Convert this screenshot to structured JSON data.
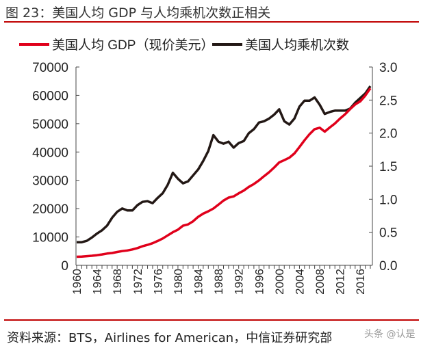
{
  "title": "图 23：美国人均 GDP 与人均乘机次数正相关",
  "source": "资料来源：BTS，Airlines for American，中信证券研究部",
  "watermark": "头条 @认是",
  "colors": {
    "gdp": "#e0001b",
    "trips": "#231815",
    "rule": "#c00000"
  },
  "chart_data": {
    "type": "line",
    "title": "",
    "x": [
      1960,
      1961,
      1962,
      1963,
      1964,
      1965,
      1966,
      1967,
      1968,
      1969,
      1970,
      1971,
      1972,
      1973,
      1974,
      1975,
      1976,
      1977,
      1978,
      1979,
      1980,
      1981,
      1982,
      1983,
      1984,
      1985,
      1986,
      1987,
      1988,
      1989,
      1990,
      1991,
      1992,
      1993,
      1994,
      1995,
      1996,
      1997,
      1998,
      1999,
      2000,
      2001,
      2002,
      2003,
      2004,
      2005,
      2006,
      2007,
      2008,
      2009,
      2010,
      2011,
      2012,
      2013,
      2014,
      2015,
      2016,
      2017,
      2018
    ],
    "xticks": [
      "1960",
      "1964",
      "1968",
      "1972",
      "1976",
      "1980",
      "1984",
      "1988",
      "1992",
      "1996",
      "2000",
      "2004",
      "2008",
      "2012",
      "2016"
    ],
    "y_left": {
      "lim": [
        0,
        70000
      ],
      "ticks": [
        "0",
        "10000",
        "20000",
        "30000",
        "40000",
        "50000",
        "60000",
        "70000"
      ]
    },
    "y_right": {
      "lim": [
        0,
        3.0
      ],
      "ticks": [
        "0.0",
        "0.5",
        "1.0",
        "1.5",
        "2.0",
        "2.5",
        "3.0"
      ]
    },
    "legend_placement": "top",
    "series": [
      {
        "name": "美国人均 GDP（现价美元）",
        "axis": "left",
        "color": "#e0001b",
        "values": [
          3007,
          3067,
          3244,
          3375,
          3574,
          3828,
          4146,
          4336,
          4696,
          5032,
          5234,
          5609,
          6094,
          6726,
          7226,
          7801,
          8592,
          9453,
          10565,
          11674,
          12575,
          13976,
          14434,
          15544,
          17121,
          18237,
          19071,
          20039,
          21417,
          22857,
          23889,
          24342,
          25419,
          26387,
          27695,
          28691,
          29968,
          31459,
          32854,
          34516,
          36330,
          37134,
          37998,
          39490,
          41725,
          44123,
          46302,
          48050,
          48570,
          47195,
          48651,
          50066,
          51784,
          53291,
          55124,
          56763,
          57867,
          59915,
          62500
        ]
      },
      {
        "name": "美国人均乘机次数",
        "axis": "right",
        "color": "#231815",
        "values": [
          0.35,
          0.35,
          0.37,
          0.42,
          0.48,
          0.53,
          0.6,
          0.72,
          0.81,
          0.86,
          0.83,
          0.83,
          0.91,
          0.96,
          0.97,
          0.94,
          1.02,
          1.09,
          1.22,
          1.4,
          1.31,
          1.24,
          1.27,
          1.36,
          1.45,
          1.58,
          1.73,
          1.97,
          1.87,
          1.84,
          1.87,
          1.78,
          1.85,
          1.88,
          2.0,
          2.06,
          2.16,
          2.18,
          2.22,
          2.28,
          2.36,
          2.18,
          2.13,
          2.22,
          2.4,
          2.49,
          2.49,
          2.54,
          2.43,
          2.29,
          2.32,
          2.34,
          2.34,
          2.34,
          2.37,
          2.46,
          2.53,
          2.6,
          2.71
        ]
      }
    ]
  }
}
